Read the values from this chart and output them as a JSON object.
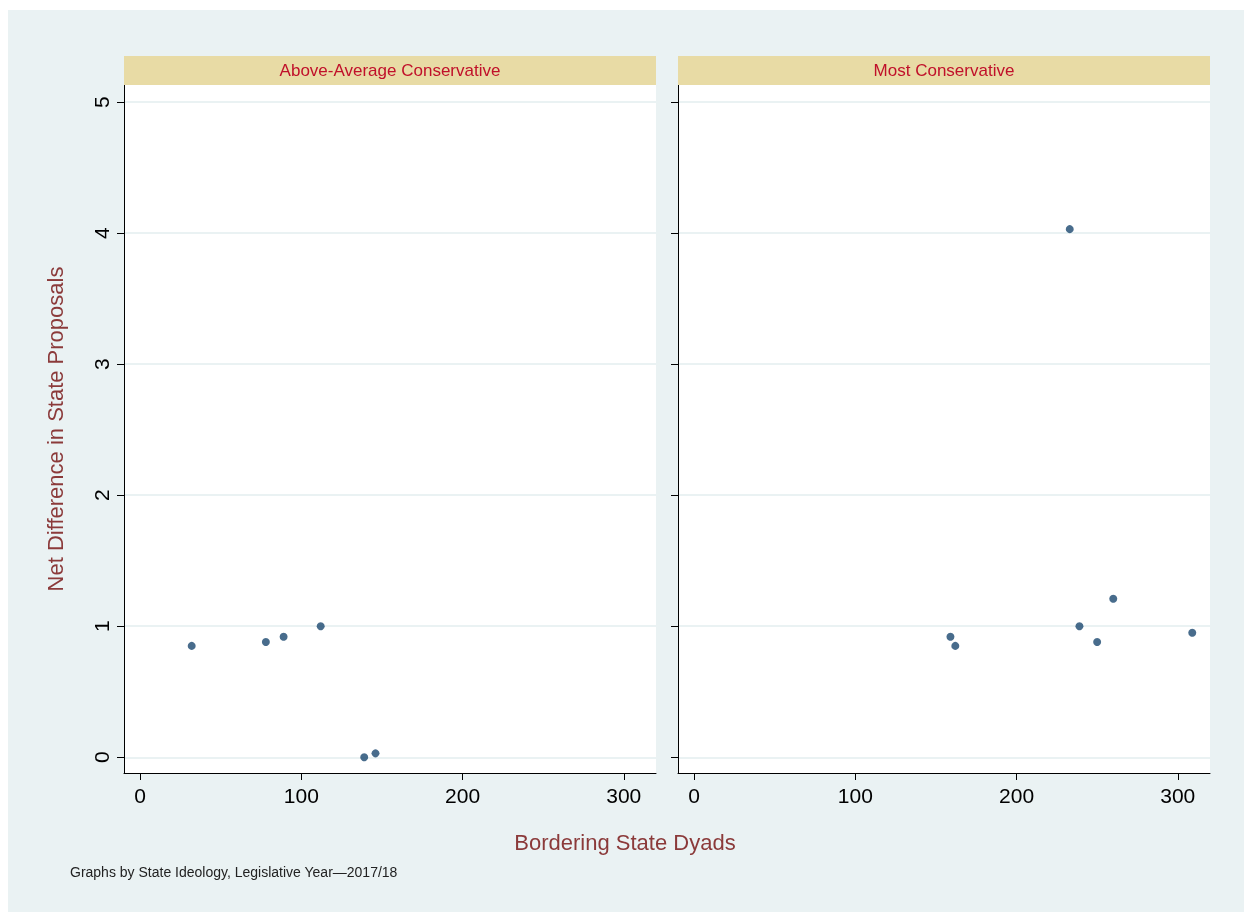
{
  "chart_data": [
    {
      "type": "scatter",
      "title": "Above-Average Conservative",
      "xlabel": "Bordering State Dyads",
      "ylabel": "Net Difference in State Proposals",
      "annotations": [
        "Graphs by State Ideology, Legislative Year—2017/18"
      ],
      "x": [
        32,
        78,
        89,
        112,
        139,
        146
      ],
      "values": [
        0.85,
        0.88,
        0.92,
        1.0,
        0.0,
        0.03
      ],
      "color": "#1a476f",
      "marker": "circle",
      "xlim": [
        -10,
        320
      ],
      "xticks": [
        0,
        100,
        200,
        300
      ],
      "ylim": [
        -0.12,
        5.13
      ],
      "yticks": [
        0,
        1,
        2,
        3,
        4,
        5
      ],
      "grid": "y"
    },
    {
      "type": "scatter",
      "title": "Most Conservative",
      "x": [
        233,
        159,
        162,
        239,
        250,
        260,
        309
      ],
      "values": [
        4.03,
        0.92,
        0.85,
        1.0,
        0.88,
        1.21,
        0.95
      ],
      "color": "#1a476f",
      "marker": "circle",
      "xlim": [
        -10,
        320
      ],
      "xticks": [
        0,
        100,
        200,
        300
      ],
      "ylim": [
        -0.12,
        5.13
      ],
      "yticks": [
        0,
        1,
        2,
        3,
        4,
        5
      ],
      "grid": "y",
      "tick_labels": "x"
    }
  ]
}
